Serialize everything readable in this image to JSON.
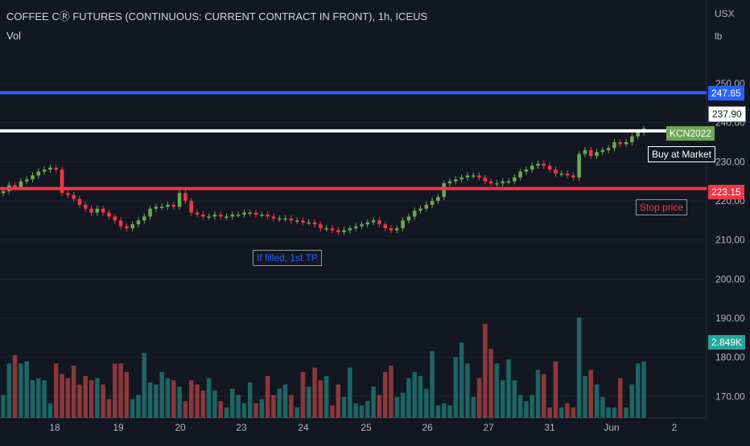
{
  "header": {
    "title": "COFFEE CⓇ FUTURES (CONTINUOUS: CURRENT CONTRACT IN FRONT), 1h, ICEUS",
    "sub": "Vol",
    "unit1": "USX",
    "unit2": "lb"
  },
  "colors": {
    "up": "#6ca855",
    "down": "#f23645",
    "vol_up": "#26a69a",
    "vol_down": "#ef5350",
    "blue_line": "#2962ff",
    "red_line": "#f23645",
    "white_line": "#ffffff"
  },
  "levels": {
    "target": {
      "value": 247.65,
      "label": "247.65"
    },
    "entry": {
      "value": 237.9,
      "label": "237.90"
    },
    "stop": {
      "value": 223.15,
      "label": "223.15"
    }
  },
  "tags": {
    "symbol": "KCN2022",
    "volume": "2.849K"
  },
  "notes": {
    "buy": "Buy at Market",
    "stop": "Stop price",
    "tp": "If filled, 1st TP"
  },
  "chart_data": {
    "type": "candlestick",
    "y_ticks": [
      "250.00",
      "240.00",
      "230.00",
      "220.00",
      "210.00",
      "200.00",
      "190.00",
      "180.00",
      "170.00"
    ],
    "y_tick_values": [
      250,
      240,
      230,
      220,
      210,
      200,
      190,
      180,
      170
    ],
    "ylim": [
      168,
      260
    ],
    "x_ticks": [
      "18",
      "19",
      "20",
      "23",
      "24",
      "25",
      "26",
      "27",
      "31",
      "Jun",
      "2"
    ],
    "close": [
      222.5,
      224,
      223.5,
      225,
      225.5,
      226.5,
      227.5,
      228,
      228.5,
      228,
      222,
      221.5,
      220.5,
      219,
      218,
      217,
      218,
      217,
      216,
      215,
      213.5,
      213,
      214,
      215,
      216,
      218,
      218.5,
      218.5,
      219,
      218.5,
      222,
      220,
      217,
      216.5,
      216,
      216,
      216.5,
      216,
      216,
      216.5,
      216.5,
      217,
      217,
      216.5,
      216.5,
      216,
      215.5,
      215.5,
      215.5,
      215,
      215,
      214.5,
      214.5,
      214,
      213,
      213,
      212.5,
      212,
      212.5,
      213,
      213.5,
      214,
      214.5,
      215,
      214,
      213,
      212.5,
      213,
      215,
      216,
      217.5,
      218,
      219,
      220,
      221,
      224.5,
      225,
      225.5,
      226,
      226.5,
      226.5,
      226,
      225,
      224.5,
      224.5,
      225,
      225,
      226,
      227.5,
      228,
      229,
      229.5,
      229,
      228,
      227,
      227,
      226.5,
      226,
      232,
      233,
      231.5,
      232.5,
      233,
      233.5,
      235,
      234.5,
      235,
      236.5,
      237.5,
      238.5
    ],
    "volume": [
      0.55,
      1.3,
      1.5,
      1.3,
      1.35,
      0.9,
      0.95,
      0.9,
      0.35,
      1.3,
      1.05,
      0.95,
      1.25,
      0.8,
      1.0,
      0.9,
      0.95,
      0.8,
      0.45,
      1.3,
      1.3,
      1.1,
      0.45,
      0.55,
      1.55,
      0.85,
      0.8,
      1.1,
      0.95,
      0.9,
      0.75,
      0.4,
      0.9,
      0.8,
      0.65,
      0.95,
      0.65,
      0.4,
      0.25,
      0.7,
      0.55,
      0.35,
      0.85,
      0.35,
      0.45,
      1.0,
      0.55,
      0.7,
      0.8,
      0.55,
      0.25,
      1.1,
      0.75,
      1.2,
      0.9,
      1.0,
      0.3,
      0.8,
      0.5,
      1.2,
      0.35,
      0.3,
      0.4,
      0.75,
      0.55,
      1.1,
      1.25,
      0.5,
      0.6,
      0.95,
      1.1,
      1.0,
      0.7,
      1.6,
      0.3,
      0.35,
      0.3,
      1.45,
      1.8,
      1.3,
      0.5,
      0.95,
      2.25,
      1.65,
      1.3,
      0.9,
      1.4,
      0.9,
      0.55,
      0.4,
      0.55,
      1.15,
      1.05,
      0.25,
      1.35,
      0.25,
      0.35,
      0.25,
      2.4,
      1.0,
      1.15,
      0.8,
      0.5,
      0.25,
      0.25,
      0.95,
      0.25,
      0.8,
      1.3,
      1.35
    ],
    "volume_unit": "K",
    "vol_max": 2.5
  }
}
